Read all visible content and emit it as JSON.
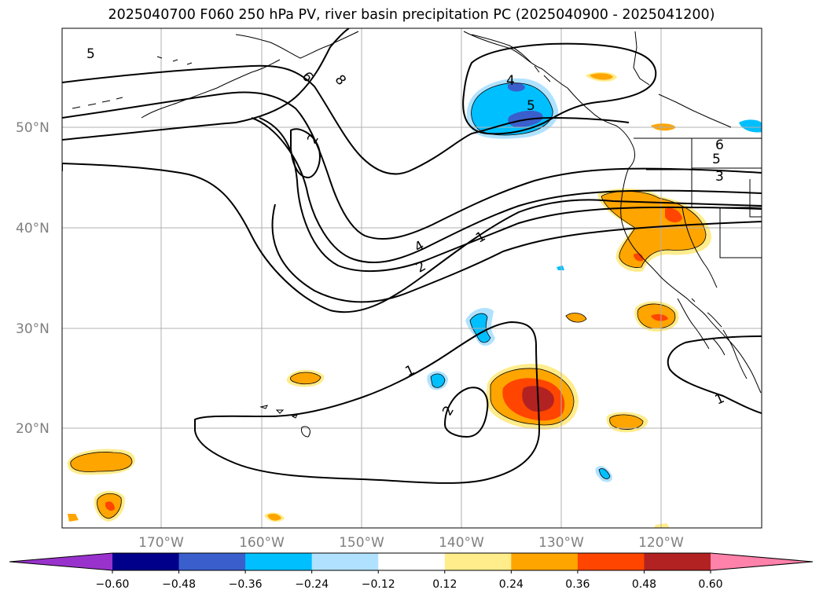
{
  "title": "2025040700 F060 250 hPa PV, river basin precipitation PC (2025040900 - 2025041200)",
  "lat_labels": [
    "50°N",
    "40°N",
    "30°N",
    "20°N"
  ],
  "lon_labels": [
    "170°W",
    "160°W",
    "150°W",
    "140°W",
    "130°W",
    "120°W"
  ],
  "colorbar": {
    "ticks": [
      "−0.60",
      "−0.48",
      "−0.36",
      "−0.24",
      "−0.12",
      "0.12",
      "0.24",
      "0.36",
      "0.48",
      "0.60"
    ],
    "colors": [
      "#9932cc",
      "#00008b",
      "#3a5fcd",
      "#00bfff",
      "#b0e2ff",
      "#ffffff",
      "#ffec8b",
      "#ffa500",
      "#ff4500",
      "#b22222",
      "#ff82ab"
    ]
  },
  "contour_labels": [
    "5",
    "6",
    "8",
    "2",
    "4",
    "5",
    "6",
    "5",
    "3",
    "1",
    "4",
    "2",
    "1",
    "2",
    "1"
  ],
  "colors": {
    "grid": "#b0b0b0",
    "contour": "#000000",
    "coast": "#000000"
  }
}
